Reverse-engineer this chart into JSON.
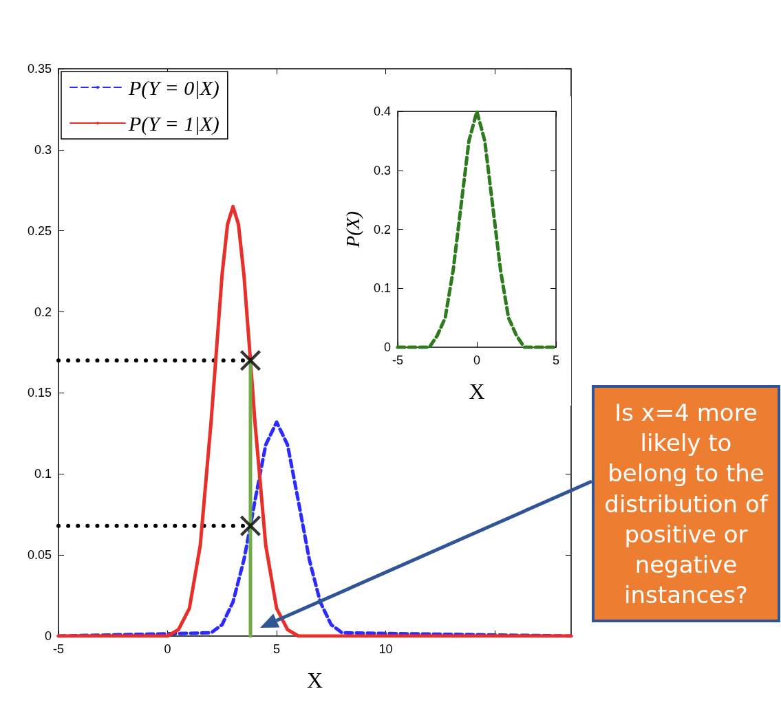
{
  "chart_data": [
    {
      "type": "line",
      "xlabel": "X",
      "xlim": [
        -5,
        18.5
      ],
      "xticks": [
        -5,
        0,
        5,
        10,
        {
          "value": 15,
          "label": null
        }
      ],
      "ylim": [
        0,
        0.35
      ],
      "yticks": [
        0,
        0.05,
        0.1,
        0.15,
        0.2,
        0.25,
        0.3,
        0.35
      ],
      "grid": false,
      "legend": "top left",
      "marker": "none",
      "annotations": [
        "Is x=4 more likely to belong to the distribution of positive or negative instances?"
      ],
      "series": [
        {
          "name": "P(Y = 0|X)",
          "color": "#2b2bff",
          "line_style": "dashed",
          "x": [
            -5,
            2,
            2.5,
            3,
            3.5,
            3.8,
            4,
            4.5,
            5,
            5.5,
            6,
            6.5,
            7,
            7.5,
            8,
            18.5
          ],
          "values": [
            0,
            0.002,
            0.007,
            0.021,
            0.047,
            0.068,
            0.083,
            0.118,
            0.132,
            0.118,
            0.083,
            0.047,
            0.021,
            0.007,
            0.002,
            0
          ]
        },
        {
          "name": "P(Y = 1|X)",
          "color": "#e8302a",
          "line_style": "solid",
          "x": [
            -5,
            0,
            0.5,
            1,
            1.5,
            2,
            2.5,
            2.75,
            3,
            3.25,
            3.5,
            3.8,
            4,
            4.5,
            5,
            5.5,
            6,
            18.5
          ],
          "values": [
            0,
            0,
            0.004,
            0.017,
            0.056,
            0.133,
            0.223,
            0.254,
            0.265,
            0.254,
            0.223,
            0.17,
            0.133,
            0.056,
            0.017,
            0.004,
            0,
            0
          ]
        },
        {
          "color": "#70ad47",
          "line_style": "solid",
          "x": [
            3.8,
            3.8
          ],
          "values": [
            0,
            0.17
          ]
        },
        {
          "color": "#000000",
          "line_style": "dotted",
          "x": [
            -5,
            3.8
          ],
          "values": [
            0.17,
            0.17
          ]
        },
        {
          "color": "#000000",
          "line_style": "dotted",
          "x": [
            -5,
            3.8
          ],
          "values": [
            0.068,
            0.068
          ]
        },
        {
          "type": "scatter",
          "marker": "cross",
          "color": "#000000",
          "x": [
            3.8,
            3.8
          ],
          "values": [
            0.17,
            0.068
          ]
        }
      ]
    },
    {
      "type": "line",
      "xlabel": "X",
      "ylabel": "P(X)",
      "xlim": [
        -5,
        5
      ],
      "xticks": [
        -5,
        0,
        5
      ],
      "ylim": [
        0,
        0.4
      ],
      "yticks": [
        0,
        0.1,
        0.2,
        0.3,
        0.4
      ],
      "grid": false,
      "legend": false,
      "marker": "none",
      "line_style": "dashed",
      "series": [
        {
          "color": "#2e7a1f",
          "x": [
            -5,
            -4,
            -3,
            -2.5,
            -2,
            -1.5,
            -1,
            -0.5,
            0,
            0.5,
            1,
            1.5,
            2,
            2.5,
            3,
            4,
            5
          ],
          "values": [
            0,
            0,
            0,
            0.02,
            0.05,
            0.13,
            0.24,
            0.35,
            0.4,
            0.35,
            0.24,
            0.13,
            0.05,
            0.02,
            0,
            0,
            0
          ]
        }
      ]
    }
  ]
}
